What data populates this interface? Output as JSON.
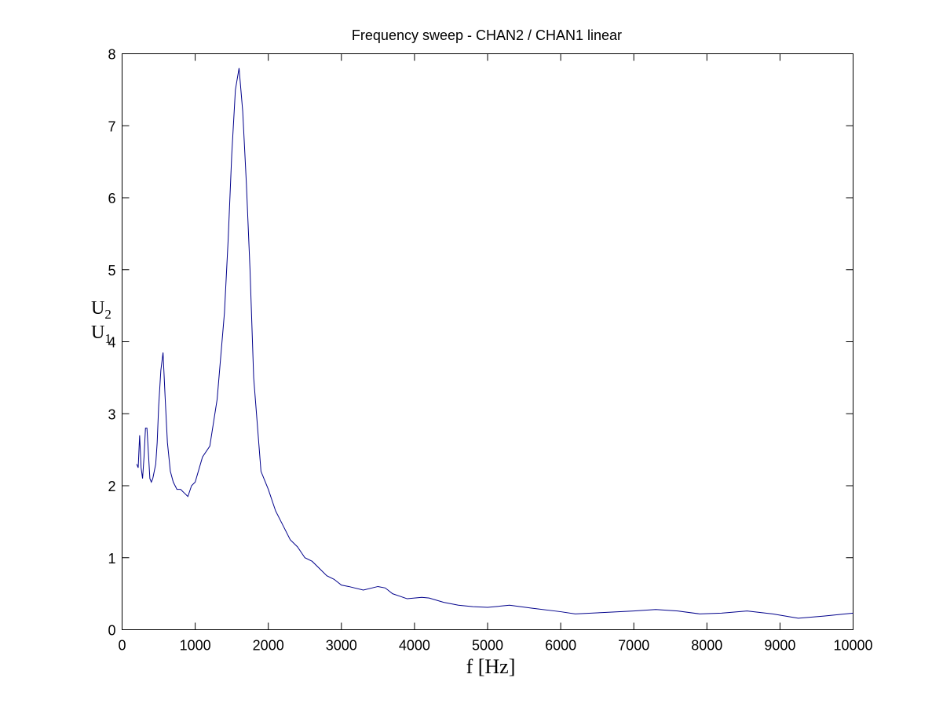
{
  "chart_data": {
    "type": "line",
    "title": "Frequency sweep - CHAN2 / CHAN1 linear",
    "xlabel": "f [Hz]",
    "ylabel": "U2 / U1",
    "ylabel_num": "U",
    "ylabel_num_sub": "2",
    "ylabel_den": "U",
    "ylabel_den_sub": "1",
    "xlim": [
      0,
      10000
    ],
    "ylim": [
      0,
      8
    ],
    "xticks": [
      "0",
      "1000",
      "2000",
      "3000",
      "4000",
      "5000",
      "6000",
      "7000",
      "8000",
      "9000",
      "10000"
    ],
    "yticks": [
      "0",
      "1",
      "2",
      "3",
      "4",
      "5",
      "6",
      "7",
      "8"
    ],
    "grid": false,
    "line_color": "#00008b",
    "x": [
      200,
      220,
      240,
      260,
      280,
      300,
      320,
      340,
      360,
      380,
      400,
      420,
      440,
      460,
      480,
      500,
      530,
      560,
      590,
      620,
      660,
      700,
      750,
      800,
      850,
      900,
      950,
      1000,
      1100,
      1200,
      1300,
      1400,
      1450,
      1500,
      1550,
      1600,
      1650,
      1700,
      1750,
      1800,
      1900,
      2000,
      2100,
      2200,
      2300,
      2400,
      2500,
      2600,
      2700,
      2800,
      2900,
      3000,
      3100,
      3300,
      3500,
      3600,
      3700,
      3900,
      4100,
      4200,
      4400,
      4600,
      4800,
      5000,
      5300,
      5600,
      6000,
      6200,
      6600,
      7000,
      7300,
      7600,
      7900,
      8200,
      8550,
      8900,
      9250,
      9600,
      10000
    ],
    "y": [
      2.3,
      2.25,
      2.7,
      2.25,
      2.1,
      2.4,
      2.8,
      2.8,
      2.45,
      2.1,
      2.05,
      2.1,
      2.2,
      2.3,
      2.6,
      3.1,
      3.6,
      3.85,
      3.2,
      2.6,
      2.2,
      2.05,
      1.95,
      1.95,
      1.9,
      1.85,
      2.0,
      2.05,
      2.4,
      2.55,
      3.2,
      4.4,
      5.4,
      6.6,
      7.5,
      7.8,
      7.2,
      6.2,
      5.0,
      3.5,
      2.2,
      1.95,
      1.65,
      1.45,
      1.25,
      1.15,
      1.0,
      0.95,
      0.85,
      0.75,
      0.7,
      0.62,
      0.6,
      0.55,
      0.6,
      0.58,
      0.5,
      0.43,
      0.45,
      0.44,
      0.38,
      0.34,
      0.32,
      0.31,
      0.34,
      0.3,
      0.25,
      0.22,
      0.24,
      0.26,
      0.28,
      0.26,
      0.22,
      0.23,
      0.26,
      0.22,
      0.16,
      0.19,
      0.23
    ]
  }
}
